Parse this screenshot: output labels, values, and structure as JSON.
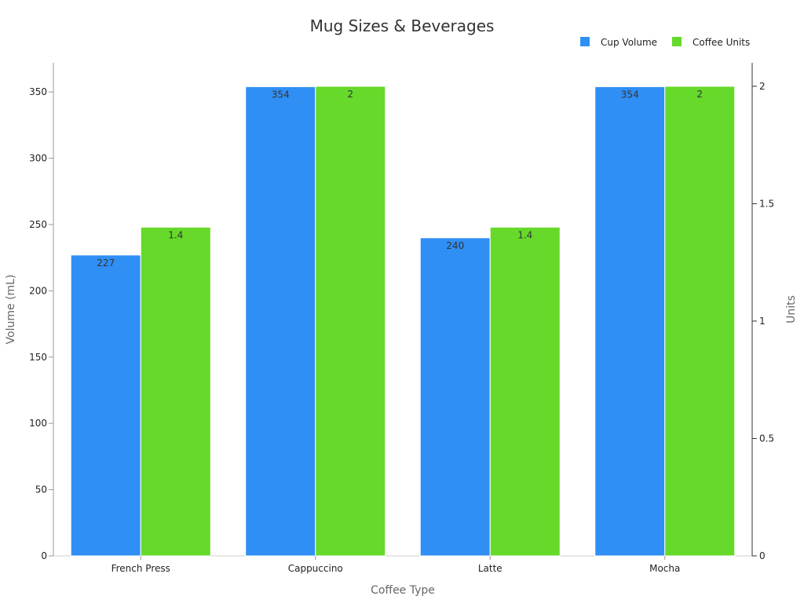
{
  "chart_data": {
    "type": "bar",
    "title": "Mug Sizes & Beverages",
    "xlabel": "Coffee Type",
    "ylabel": "Volume (mL)",
    "y2label": "Units",
    "categories": [
      "French Press",
      "Cappuccino",
      "Latte",
      "Mocha"
    ],
    "ylim": [
      0,
      372
    ],
    "y2lim": [
      0,
      2.1
    ],
    "yticks": [
      0,
      50,
      100,
      150,
      200,
      250,
      300,
      350
    ],
    "y2ticks": [
      0,
      0.5,
      1,
      1.5,
      2
    ],
    "y2tick_labels": [
      "0",
      "0.5",
      "1",
      "1.5",
      "2"
    ],
    "legend_position": "top-right",
    "grid": false,
    "series": [
      {
        "name": "Cup Volume",
        "axis": "left",
        "color": "#2F8FF5",
        "values": [
          227,
          354,
          240,
          354
        ],
        "labels": [
          "227",
          "354",
          "240",
          "354"
        ]
      },
      {
        "name": "Coffee Units",
        "axis": "right",
        "color": "#66D92A",
        "values": [
          1.4,
          2,
          1.4,
          2
        ],
        "labels": [
          "1.4",
          "2",
          "1.4",
          "2"
        ]
      }
    ]
  }
}
